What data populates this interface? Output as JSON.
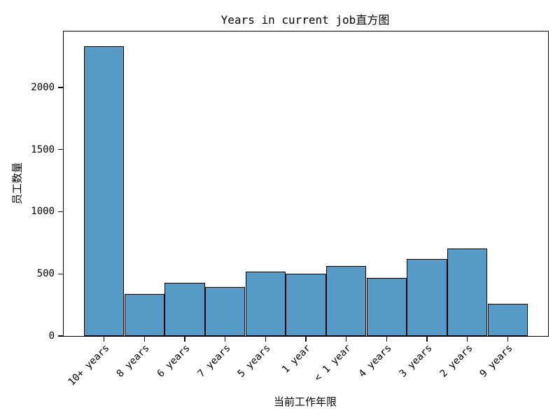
{
  "chart_data": {
    "type": "bar",
    "title": "Years in current job直方图",
    "xlabel": "当前工作年限",
    "ylabel": "员工数量",
    "categories": [
      "10+ years",
      "8 years",
      "6 years",
      "7 years",
      "5 years",
      "1 year",
      "< 1 year",
      "4 years",
      "3 years",
      "2 years",
      "9 years"
    ],
    "values": [
      2332,
      339,
      426,
      396,
      516,
      504,
      563,
      469,
      620,
      705,
      259
    ],
    "yticks": [
      0,
      500,
      1000,
      1500,
      2000
    ],
    "ylim": [
      0,
      2450
    ],
    "x_tick_rotation": 45,
    "grid": false,
    "legend": false,
    "bar_color": "#5799c7",
    "bar_edge_color": "#000000",
    "background_color": "#ffffff"
  }
}
